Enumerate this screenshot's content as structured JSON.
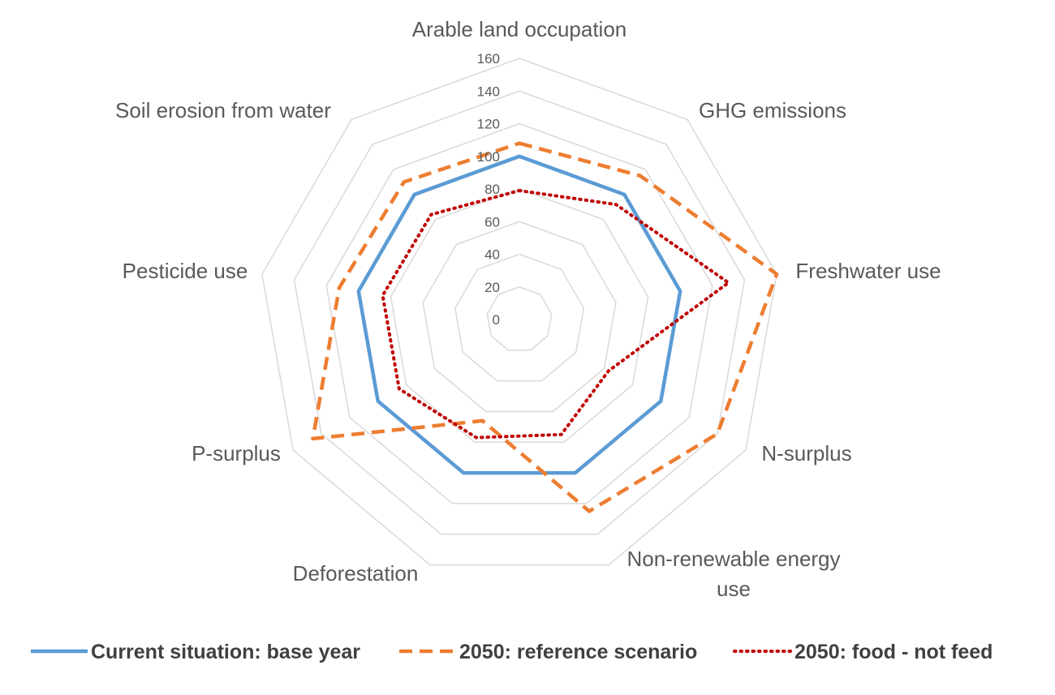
{
  "chart_data": {
    "type": "radar",
    "axes": [
      "Arable land occupation",
      "GHG emissions",
      "Freshwater use",
      "N-surplus",
      "Non-renewable energy use",
      "Deforestation",
      "P-surplus",
      "Pesticide use",
      "Soil erosion from water"
    ],
    "ticks": [
      "0",
      "20",
      "40",
      "60",
      "80",
      "100",
      "120",
      "140",
      "160"
    ],
    "rmin": 0,
    "rmax": 160,
    "grid": true,
    "legend_position": "bottom",
    "series": [
      {
        "name": "Current situation: base year",
        "color": "#5B9BD5",
        "style": "solid",
        "values": [
          100,
          100,
          100,
          100,
          100,
          100,
          100,
          100,
          100
        ]
      },
      {
        "name": "2050: reference scenario",
        "color": "#ED7D31",
        "style": "dashed",
        "values": [
          108,
          115,
          160,
          140,
          125,
          66,
          146,
          112,
          110
        ]
      },
      {
        "name": "2050: food - not feed",
        "color": "#C00000",
        "style": "dotted",
        "values": [
          79,
          92,
          130,
          63,
          75,
          77,
          85,
          85,
          84
        ]
      }
    ]
  }
}
